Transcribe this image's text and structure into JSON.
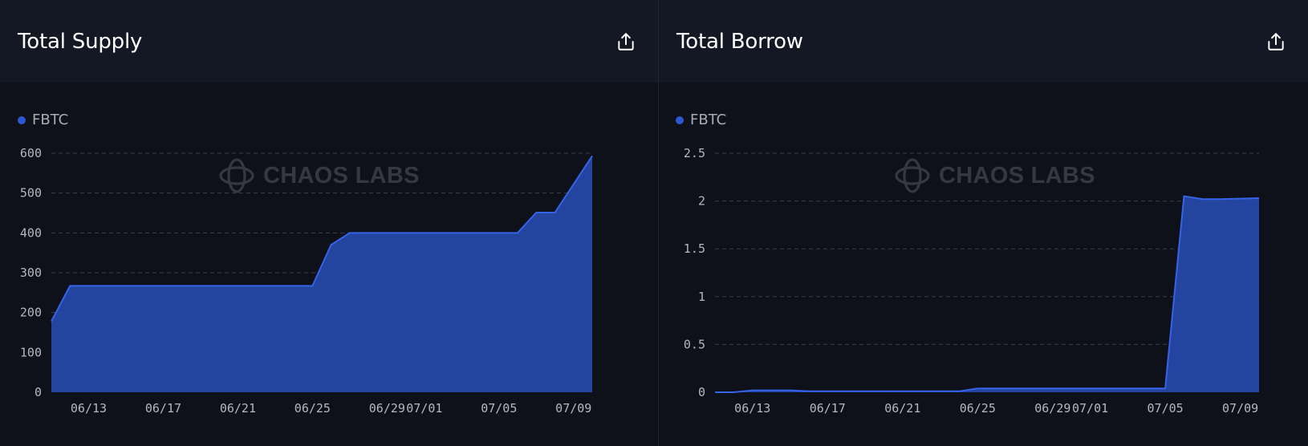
{
  "panels": [
    {
      "title": "Total Supply",
      "export_icon": "share-upload-icon",
      "watermark": "CHAOS LABS",
      "watermark_icon": "chaos-labs-logo-icon"
    },
    {
      "title": "Total Borrow",
      "export_icon": "share-upload-icon",
      "watermark": "CHAOS LABS",
      "watermark_icon": "chaos-labs-logo-icon"
    }
  ],
  "chart_data": [
    {
      "type": "area",
      "title": "Total Supply",
      "legend_position": "top-left",
      "grid": true,
      "colors": {
        "fill": "#2549a6",
        "line": "#3663e8",
        "legend_dot": "#2f57d4"
      },
      "x_domain": [
        "2024-06-11",
        "2024-07-10"
      ],
      "x_ticks": [
        {
          "date": "2024-06-13",
          "label": "06/13"
        },
        {
          "date": "2024-06-17",
          "label": "06/17"
        },
        {
          "date": "2024-06-21",
          "label": "06/21"
        },
        {
          "date": "2024-06-25",
          "label": "06/25"
        },
        {
          "date": "2024-06-29",
          "label": "06/29"
        },
        {
          "date": "2024-07-01",
          "label": "07/01"
        },
        {
          "date": "2024-07-05",
          "label": "07/05"
        },
        {
          "date": "2024-07-09",
          "label": "07/09"
        }
      ],
      "ylim": [
        0,
        600
      ],
      "y_ticks": [
        {
          "value": 0,
          "label": "0"
        },
        {
          "value": 100,
          "label": "100"
        },
        {
          "value": 200,
          "label": "200"
        },
        {
          "value": 300,
          "label": "300"
        },
        {
          "value": 400,
          "label": "400"
        },
        {
          "value": 500,
          "label": "500"
        },
        {
          "value": 600,
          "label": "600"
        }
      ],
      "series": [
        {
          "name": "FBTC",
          "x": [
            "2024-06-11",
            "2024-06-12",
            "2024-06-25",
            "2024-06-26",
            "2024-06-27",
            "2024-07-06",
            "2024-07-07",
            "2024-07-08",
            "2024-07-10"
          ],
          "values": [
            178,
            267,
            267,
            370,
            400,
            400,
            451,
            451,
            593
          ]
        }
      ]
    },
    {
      "type": "area",
      "title": "Total Borrow",
      "legend_position": "top-left",
      "grid": true,
      "colors": {
        "fill": "#2549a6",
        "line": "#3663e8",
        "legend_dot": "#2f57d4"
      },
      "x_domain": [
        "2024-06-11",
        "2024-07-10"
      ],
      "x_ticks": [
        {
          "date": "2024-06-13",
          "label": "06/13"
        },
        {
          "date": "2024-06-17",
          "label": "06/17"
        },
        {
          "date": "2024-06-21",
          "label": "06/21"
        },
        {
          "date": "2024-06-25",
          "label": "06/25"
        },
        {
          "date": "2024-06-29",
          "label": "06/29"
        },
        {
          "date": "2024-07-01",
          "label": "07/01"
        },
        {
          "date": "2024-07-05",
          "label": "07/05"
        },
        {
          "date": "2024-07-09",
          "label": "07/09"
        }
      ],
      "ylim": [
        0,
        2.5
      ],
      "y_ticks": [
        {
          "value": 0,
          "label": "0"
        },
        {
          "value": 0.5,
          "label": "0.5"
        },
        {
          "value": 1,
          "label": "1"
        },
        {
          "value": 1.5,
          "label": "1.5"
        },
        {
          "value": 2,
          "label": "2"
        },
        {
          "value": 2.5,
          "label": "2.5"
        }
      ],
      "series": [
        {
          "name": "FBTC",
          "x": [
            "2024-06-11",
            "2024-06-12",
            "2024-06-13",
            "2024-06-15",
            "2024-06-16",
            "2024-06-24",
            "2024-06-25",
            "2024-07-05",
            "2024-07-06",
            "2024-07-07",
            "2024-07-08",
            "2024-07-10"
          ],
          "values": [
            0,
            0,
            0.02,
            0.02,
            0.01,
            0.01,
            0.04,
            0.04,
            2.05,
            2.02,
            2.02,
            2.03
          ]
        }
      ]
    }
  ]
}
